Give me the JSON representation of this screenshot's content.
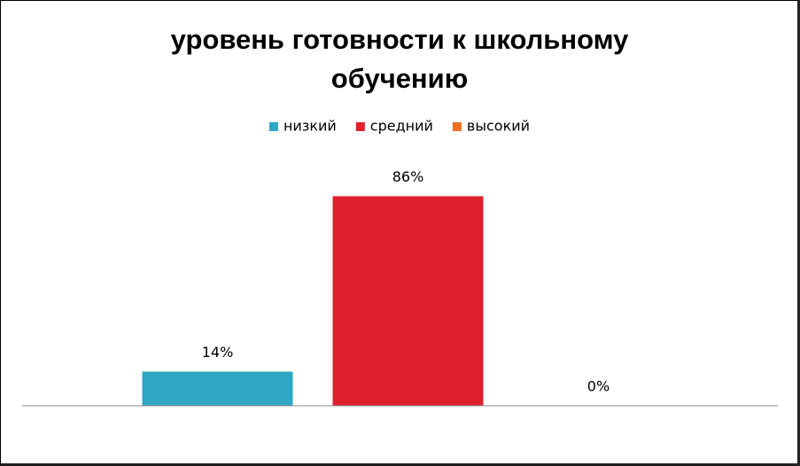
{
  "chart_data": {
    "type": "bar",
    "title": "уровень готовности к школьному обучению",
    "categories": [
      null
    ],
    "series": [
      {
        "name": "низкий",
        "color": "#2ea6c4",
        "values": [
          14
        ],
        "value_labels": [
          "14%"
        ]
      },
      {
        "name": "средний",
        "color": "#dd202c",
        "values": [
          86
        ],
        "value_labels": [
          "86%"
        ]
      },
      {
        "name": "высокий",
        "color": "#ee7022",
        "values": [
          0
        ],
        "value_labels": [
          "0%"
        ]
      }
    ],
    "ylim": [
      0,
      100
    ],
    "legend": "top"
  }
}
